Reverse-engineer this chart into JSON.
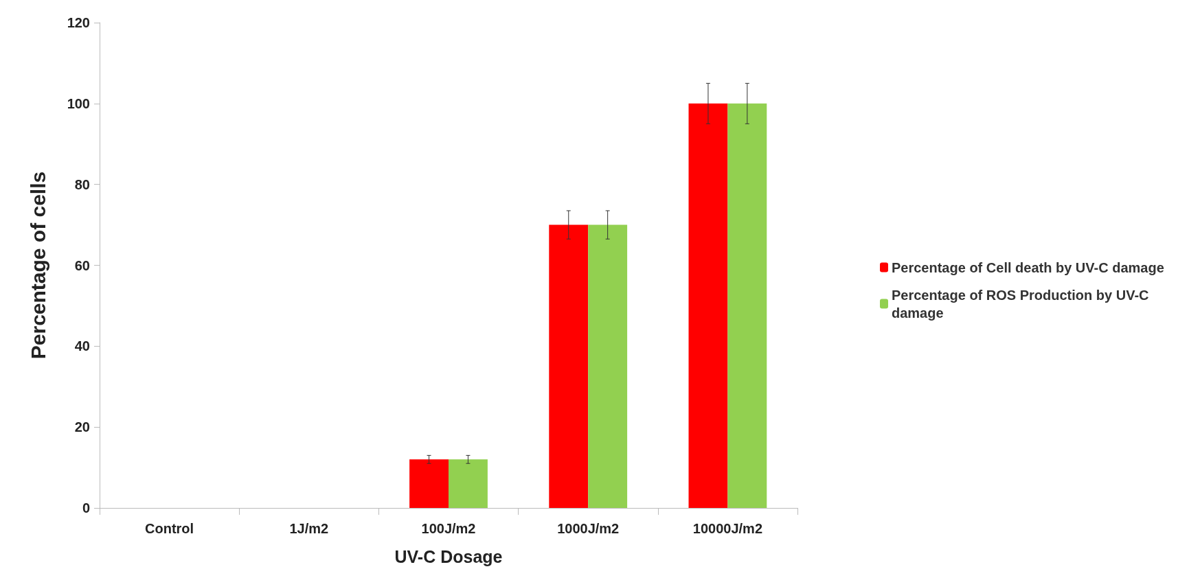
{
  "chart_data": {
    "type": "bar",
    "xlabel": "UV-C Dosage",
    "ylabel": "Percentage of cells",
    "categories": [
      "Control",
      "1J/m2",
      "100J/m2",
      "1000J/m2",
      "10000J/m2"
    ],
    "series": [
      {
        "name": "Percentage of Cell death by UV-C damage",
        "color": "#ff0000",
        "values": [
          0,
          0,
          12,
          70,
          100
        ],
        "errors": [
          null,
          null,
          1,
          3.5,
          5
        ]
      },
      {
        "name": "Percentage of ROS Production by UV-C damage",
        "color": "#92d050",
        "values": [
          0,
          0,
          12,
          70,
          100
        ],
        "errors": [
          null,
          null,
          1,
          3.5,
          5
        ]
      }
    ],
    "ylim": [
      0,
      120
    ],
    "yticks": [
      0,
      20,
      40,
      60,
      80,
      100,
      120
    ],
    "grid": false,
    "legend": "right"
  }
}
